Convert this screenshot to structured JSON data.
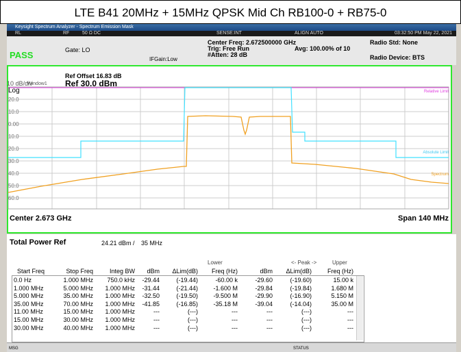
{
  "banner": "LTE B41 20MHz + 15MHz QPSK Mid Ch RB100-0 + RB75-0",
  "window": {
    "title": "Keysight Spectrum Analyzer - Spectrum Emission Mask",
    "time": "03:32:50 PM May 22, 2021"
  },
  "status_bar": [
    "RL",
    "RF",
    "50 Ω  DC",
    "SENSE:INT",
    "ALIGN AUTO"
  ],
  "info": {
    "pass": "PASS",
    "gate": "Gate: LO",
    "ifgain": "IFGain:Low",
    "center_freq": "Center Freq: 2.672500000 GHz",
    "trig": "Trig: Free Run",
    "atten": "#Atten: 28 dB",
    "avg": "Avg: 100.00% of 10",
    "radio_std": "Radio Std: None",
    "radio_device": "Radio Device: BTS"
  },
  "graph": {
    "ref_offset": "Ref Offset 16.83 dB",
    "scale": "10 dB/div",
    "window": "Window1",
    "ref": "Ref 30.0 dBm",
    "log": "Log",
    "y_labels": [
      "20.0",
      "10.0",
      "0.00",
      "10.0",
      "20.0",
      "30.0",
      "40.0",
      "50.0",
      "60.0"
    ],
    "trace_labels": [
      "Relative Limit",
      "Absolute Limit",
      "Spectrum"
    ],
    "center": "Center 2.673 GHz",
    "span": "Span 140 MHz"
  },
  "total_power": {
    "label": "Total Power Ref",
    "value": "24.21 dBm /",
    "bw": "35 MHz"
  },
  "table": {
    "groups": [
      "Lower",
      "<- Peak ->",
      "Upper"
    ],
    "headers": [
      "Start Freq",
      "Stop Freq",
      "Integ BW",
      "dBm",
      "ΔLim(dB)",
      "Freq (Hz)",
      "dBm",
      "ΔLim(dB)",
      "Freq (Hz)"
    ],
    "rows": [
      [
        "0.0 Hz",
        "1.000 MHz",
        "750.0 kHz",
        "-29.44",
        "(-19.44)",
        "-60.00 k",
        "-29.60",
        "(-19.60)",
        "15.00 k"
      ],
      [
        "1.000 MHz",
        "5.000 MHz",
        "1.000 MHz",
        "-31.44",
        "(-21.44)",
        "-1.600 M",
        "-29.84",
        "(-19.84)",
        "1.680 M"
      ],
      [
        "5.000 MHz",
        "35.00 MHz",
        "1.000 MHz",
        "-32.50",
        "(-19.50)",
        "-9.500 M",
        "-29.90",
        "(-16.90)",
        "5.150 M"
      ],
      [
        "35.00 MHz",
        "70.00 MHz",
        "1.000 MHz",
        "-41.85",
        "(-16.85)",
        "-35.18 M",
        "-39.04",
        "(-14.04)",
        "35.00 M"
      ],
      [
        "11.00 MHz",
        "15.00 MHz",
        "1.000 MHz",
        "---",
        "(---)",
        "---",
        "---",
        "(---)",
        "---"
      ],
      [
        "15.00 MHz",
        "30.00 MHz",
        "1.000 MHz",
        "---",
        "(---)",
        "---",
        "---",
        "(---)",
        "---"
      ],
      [
        "30.00 MHz",
        "40.00 MHz",
        "1.000 MHz",
        "---",
        "(---)",
        "---",
        "---",
        "(---)",
        "---"
      ]
    ]
  },
  "footer": [
    "MSG",
    "STATUS"
  ]
}
